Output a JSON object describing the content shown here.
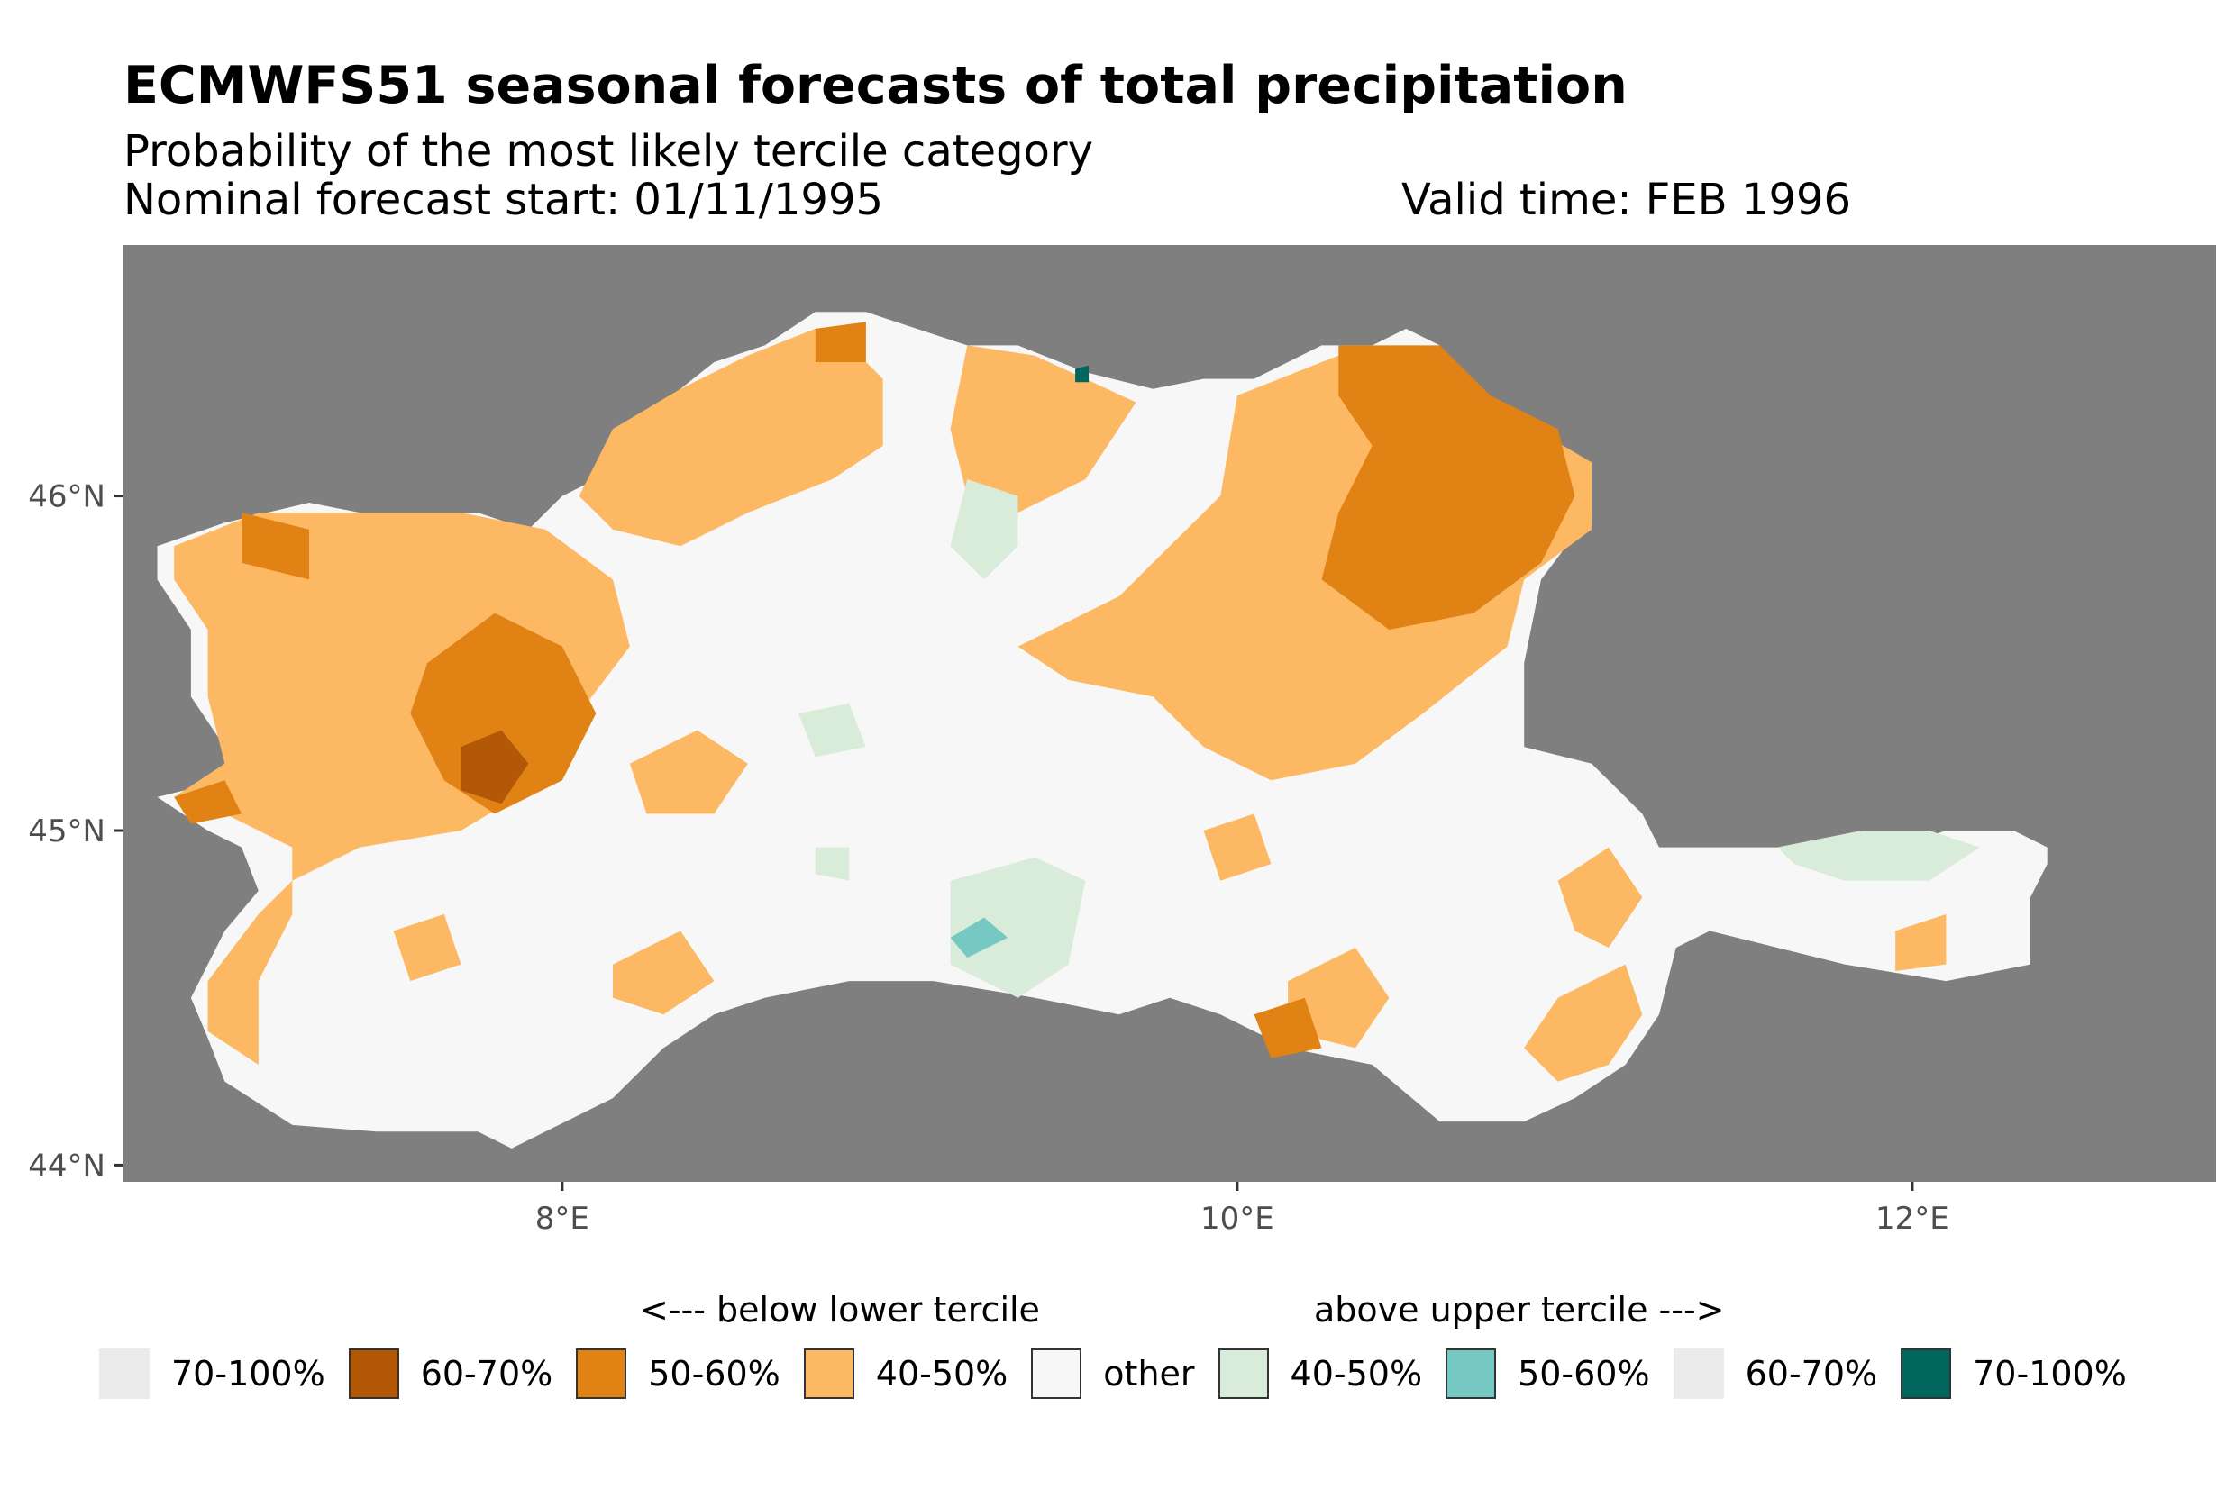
{
  "title": "ECMWFS51 seasonal forecasts of total precipitation",
  "subtitle": "Probability of the most likely tercile category",
  "forecast_start": "Nominal forecast start: 01/11/1995",
  "valid_time": "Valid time: FEB 1996",
  "colors": {
    "background": "#7f7f7f",
    "below_40_50": "#fdb863",
    "below_50_60": "#e08214",
    "below_60_70": "#b35806",
    "other": "#f7f7f7",
    "above_40_50": "#d9ecd9",
    "above_50_60": "#76c8c2",
    "above_70_100": "#01665e",
    "empty": "#ebebeb"
  },
  "chart_data": {
    "type": "heatmap",
    "title": "ECMWFS51 seasonal forecasts of total precipitation",
    "xlim": [
      6.7,
      12.9
    ],
    "ylim": [
      43.95,
      46.75
    ],
    "x_ticks": [
      {
        "value": 8,
        "label": "8°E"
      },
      {
        "value": 10,
        "label": "10°E"
      },
      {
        "value": 12,
        "label": "12°E"
      }
    ],
    "y_ticks": [
      {
        "value": 44,
        "label": "44°N"
      },
      {
        "value": 45,
        "label": "45°N"
      },
      {
        "value": 46,
        "label": "46°N"
      }
    ],
    "region_outline": [
      [
        6.8,
        45.1
      ],
      [
        7.0,
        45.15
      ],
      [
        7.0,
        45.25
      ],
      [
        6.9,
        45.4
      ],
      [
        6.9,
        45.6
      ],
      [
        6.8,
        45.75
      ],
      [
        6.8,
        45.85
      ],
      [
        7.0,
        45.92
      ],
      [
        7.25,
        45.98
      ],
      [
        7.4,
        45.95
      ],
      [
        7.55,
        45.95
      ],
      [
        7.75,
        45.95
      ],
      [
        7.9,
        45.9
      ],
      [
        8.0,
        46.0
      ],
      [
        8.1,
        46.05
      ],
      [
        8.15,
        46.2
      ],
      [
        8.3,
        46.28
      ],
      [
        8.45,
        46.4
      ],
      [
        8.6,
        46.45
      ],
      [
        8.75,
        46.55
      ],
      [
        8.9,
        46.55
      ],
      [
        9.05,
        46.5
      ],
      [
        9.2,
        46.45
      ],
      [
        9.35,
        46.45
      ],
      [
        9.55,
        46.37
      ],
      [
        9.75,
        46.32
      ],
      [
        9.9,
        46.35
      ],
      [
        10.05,
        46.35
      ],
      [
        10.25,
        46.45
      ],
      [
        10.4,
        46.45
      ],
      [
        10.5,
        46.5
      ],
      [
        10.6,
        46.45
      ],
      [
        10.7,
        46.3
      ],
      [
        10.85,
        46.2
      ],
      [
        10.95,
        46.15
      ],
      [
        11.05,
        46.1
      ],
      [
        11.05,
        45.95
      ],
      [
        10.9,
        45.75
      ],
      [
        10.85,
        45.5
      ],
      [
        10.85,
        45.25
      ],
      [
        11.05,
        45.2
      ],
      [
        11.2,
        45.05
      ],
      [
        11.25,
        44.95
      ],
      [
        11.45,
        44.95
      ],
      [
        11.6,
        44.95
      ],
      [
        11.75,
        44.95
      ],
      [
        11.95,
        44.95
      ],
      [
        12.1,
        45.0
      ],
      [
        12.3,
        45.0
      ],
      [
        12.4,
        44.95
      ],
      [
        12.4,
        44.9
      ],
      [
        12.35,
        44.8
      ],
      [
        12.35,
        44.6
      ],
      [
        12.1,
        44.55
      ],
      [
        11.8,
        44.6
      ],
      [
        11.4,
        44.7
      ],
      [
        11.3,
        44.65
      ],
      [
        11.25,
        44.45
      ],
      [
        11.15,
        44.3
      ],
      [
        11.0,
        44.2
      ],
      [
        10.85,
        44.13
      ],
      [
        10.6,
        44.13
      ],
      [
        10.4,
        44.3
      ],
      [
        10.15,
        44.35
      ],
      [
        9.95,
        44.45
      ],
      [
        9.8,
        44.5
      ],
      [
        9.65,
        44.45
      ],
      [
        9.4,
        44.5
      ],
      [
        9.1,
        44.55
      ],
      [
        8.85,
        44.55
      ],
      [
        8.6,
        44.5
      ],
      [
        8.45,
        44.45
      ],
      [
        8.3,
        44.35
      ],
      [
        8.15,
        44.2
      ],
      [
        7.95,
        44.1
      ],
      [
        7.85,
        44.05
      ],
      [
        7.75,
        44.1
      ],
      [
        7.45,
        44.1
      ],
      [
        7.2,
        44.12
      ],
      [
        7.0,
        44.25
      ],
      [
        6.95,
        44.38
      ],
      [
        6.9,
        44.5
      ],
      [
        6.95,
        44.6
      ],
      [
        7.0,
        44.7
      ],
      [
        7.1,
        44.82
      ],
      [
        7.05,
        44.95
      ],
      [
        6.95,
        45.0
      ],
      [
        6.8,
        45.1
      ]
    ],
    "series": [
      {
        "name": "below 40-50%",
        "color": "#fdb863",
        "regions": [
          [
            [
              6.85,
              45.85
            ],
            [
              7.1,
              45.95
            ],
            [
              7.4,
              45.95
            ],
            [
              7.7,
              45.95
            ],
            [
              7.95,
              45.9
            ],
            [
              8.15,
              45.75
            ],
            [
              8.2,
              45.55
            ],
            [
              8.05,
              45.35
            ],
            [
              7.95,
              45.15
            ],
            [
              7.7,
              45.0
            ],
            [
              7.4,
              44.95
            ],
            [
              7.2,
              44.85
            ],
            [
              7.1,
              44.75
            ],
            [
              6.95,
              44.55
            ],
            [
              6.95,
              44.4
            ],
            [
              7.1,
              44.3
            ],
            [
              7.1,
              44.55
            ],
            [
              7.2,
              44.75
            ],
            [
              7.2,
              44.95
            ],
            [
              7.0,
              45.05
            ],
            [
              6.85,
              45.1
            ],
            [
              7.0,
              45.2
            ],
            [
              6.95,
              45.4
            ],
            [
              6.95,
              45.6
            ],
            [
              6.85,
              45.75
            ]
          ],
          [
            [
              8.05,
              46.0
            ],
            [
              8.15,
              46.2
            ],
            [
              8.35,
              46.32
            ],
            [
              8.55,
              46.42
            ],
            [
              8.75,
              46.5
            ],
            [
              8.85,
              46.45
            ],
            [
              8.95,
              46.35
            ],
            [
              8.95,
              46.15
            ],
            [
              8.8,
              46.05
            ],
            [
              8.55,
              45.95
            ],
            [
              8.35,
              45.85
            ],
            [
              8.15,
              45.9
            ]
          ],
          [
            [
              9.2,
              46.45
            ],
            [
              9.4,
              46.42
            ],
            [
              9.55,
              46.35
            ],
            [
              9.7,
              46.28
            ],
            [
              9.55,
              46.05
            ],
            [
              9.35,
              45.95
            ],
            [
              9.2,
              46.0
            ],
            [
              9.15,
              46.2
            ]
          ],
          [
            [
              10.0,
              46.3
            ],
            [
              10.3,
              46.42
            ],
            [
              10.55,
              46.45
            ],
            [
              10.85,
              46.22
            ],
            [
              11.05,
              46.1
            ],
            [
              11.05,
              45.9
            ],
            [
              10.85,
              45.75
            ],
            [
              10.8,
              45.55
            ],
            [
              10.55,
              45.35
            ],
            [
              10.35,
              45.2
            ],
            [
              10.1,
              45.15
            ],
            [
              9.9,
              45.25
            ],
            [
              9.75,
              45.4
            ],
            [
              9.5,
              45.45
            ],
            [
              9.35,
              45.55
            ],
            [
              9.65,
              45.7
            ],
            [
              9.8,
              45.85
            ],
            [
              9.95,
              46.0
            ]
          ],
          [
            [
              8.2,
              45.2
            ],
            [
              8.4,
              45.3
            ],
            [
              8.55,
              45.2
            ],
            [
              8.45,
              45.05
            ],
            [
              8.25,
              45.05
            ]
          ],
          [
            [
              10.15,
              44.55
            ],
            [
              10.35,
              44.65
            ],
            [
              10.45,
              44.5
            ],
            [
              10.35,
              44.35
            ],
            [
              10.15,
              44.4
            ]
          ],
          [
            [
              10.95,
              44.5
            ],
            [
              11.15,
              44.6
            ],
            [
              11.2,
              44.45
            ],
            [
              11.1,
              44.3
            ],
            [
              10.95,
              44.25
            ],
            [
              10.85,
              44.35
            ]
          ],
          [
            [
              10.95,
              44.85
            ],
            [
              11.1,
              44.95
            ],
            [
              11.2,
              44.8
            ],
            [
              11.1,
              44.65
            ],
            [
              11.0,
              44.7
            ]
          ],
          [
            [
              11.95,
              44.7
            ],
            [
              12.1,
              44.75
            ],
            [
              12.1,
              44.6
            ],
            [
              11.95,
              44.58
            ]
          ],
          [
            [
              8.15,
              44.6
            ],
            [
              8.35,
              44.7
            ],
            [
              8.45,
              44.55
            ],
            [
              8.3,
              44.45
            ],
            [
              8.15,
              44.5
            ]
          ],
          [
            [
              7.5,
              44.7
            ],
            [
              7.65,
              44.75
            ],
            [
              7.7,
              44.6
            ],
            [
              7.55,
              44.55
            ]
          ],
          [
            [
              9.9,
              45.0
            ],
            [
              10.05,
              45.05
            ],
            [
              10.1,
              44.9
            ],
            [
              9.95,
              44.85
            ]
          ]
        ]
      },
      {
        "name": "below 50-60%",
        "color": "#e08214",
        "regions": [
          [
            [
              7.6,
              45.5
            ],
            [
              7.8,
              45.65
            ],
            [
              8.0,
              45.55
            ],
            [
              8.1,
              45.35
            ],
            [
              8.0,
              45.15
            ],
            [
              7.8,
              45.05
            ],
            [
              7.65,
              45.15
            ],
            [
              7.55,
              45.35
            ]
          ],
          [
            [
              7.05,
              45.95
            ],
            [
              7.25,
              45.9
            ],
            [
              7.25,
              45.75
            ],
            [
              7.05,
              45.8
            ]
          ],
          [
            [
              6.85,
              45.1
            ],
            [
              7.0,
              45.15
            ],
            [
              7.05,
              45.05
            ],
            [
              6.9,
              45.02
            ]
          ],
          [
            [
              10.3,
              46.45
            ],
            [
              10.6,
              46.45
            ],
            [
              10.75,
              46.3
            ],
            [
              10.95,
              46.2
            ],
            [
              11.0,
              46.0
            ],
            [
              10.9,
              45.8
            ],
            [
              10.7,
              45.65
            ],
            [
              10.45,
              45.6
            ],
            [
              10.25,
              45.75
            ],
            [
              10.3,
              45.95
            ],
            [
              10.4,
              46.15
            ],
            [
              10.3,
              46.3
            ]
          ],
          [
            [
              8.75,
              46.5
            ],
            [
              8.9,
              46.52
            ],
            [
              8.9,
              46.4
            ],
            [
              8.75,
              46.4
            ]
          ],
          [
            [
              10.05,
              44.45
            ],
            [
              10.2,
              44.5
            ],
            [
              10.25,
              44.35
            ],
            [
              10.1,
              44.32
            ]
          ]
        ]
      },
      {
        "name": "below 60-70%",
        "color": "#b35806",
        "regions": [
          [
            [
              7.7,
              45.25
            ],
            [
              7.82,
              45.3
            ],
            [
              7.9,
              45.2
            ],
            [
              7.82,
              45.08
            ],
            [
              7.7,
              45.12
            ]
          ]
        ]
      },
      {
        "name": "above 40-50%",
        "color": "#d9ecd9",
        "regions": [
          [
            [
              9.2,
              46.05
            ],
            [
              9.35,
              46.0
            ],
            [
              9.35,
              45.85
            ],
            [
              9.25,
              45.75
            ],
            [
              9.15,
              45.85
            ]
          ],
          [
            [
              9.15,
              44.85
            ],
            [
              9.4,
              44.92
            ],
            [
              9.55,
              44.85
            ],
            [
              9.5,
              44.6
            ],
            [
              9.35,
              44.5
            ],
            [
              9.15,
              44.6
            ]
          ],
          [
            [
              11.6,
              44.95
            ],
            [
              11.85,
              45.0
            ],
            [
              12.05,
              45.0
            ],
            [
              12.2,
              44.95
            ],
            [
              12.05,
              44.85
            ],
            [
              11.8,
              44.85
            ],
            [
              11.65,
              44.9
            ]
          ],
          [
            [
              8.7,
              45.35
            ],
            [
              8.85,
              45.38
            ],
            [
              8.9,
              45.25
            ],
            [
              8.75,
              45.22
            ]
          ],
          [
            [
              8.75,
              44.95
            ],
            [
              8.85,
              44.95
            ],
            [
              8.85,
              44.85
            ],
            [
              8.75,
              44.87
            ]
          ]
        ]
      },
      {
        "name": "above 50-60%",
        "color": "#76c8c2",
        "regions": [
          [
            [
              9.15,
              44.68
            ],
            [
              9.25,
              44.74
            ],
            [
              9.32,
              44.68
            ],
            [
              9.2,
              44.62
            ]
          ]
        ]
      },
      {
        "name": "above 70-100%",
        "color": "#01665e",
        "regions": [
          [
            [
              9.52,
              46.38
            ],
            [
              9.56,
              46.39
            ],
            [
              9.56,
              46.34
            ],
            [
              9.52,
              46.34
            ]
          ]
        ]
      }
    ]
  },
  "legend": {
    "below_heading": "<--- below lower tercile",
    "above_heading": "above upper tercile --->",
    "items": [
      {
        "label": "70-100%",
        "color": "#ebebeb",
        "border": false
      },
      {
        "label": "60-70%",
        "color": "#b35806",
        "border": true
      },
      {
        "label": "50-60%",
        "color": "#e08214",
        "border": true
      },
      {
        "label": "40-50%",
        "color": "#fdb863",
        "border": true
      },
      {
        "label": "other",
        "color": "#f7f7f7",
        "border": true
      },
      {
        "label": "40-50%",
        "color": "#d9ecd9",
        "border": true
      },
      {
        "label": "50-60%",
        "color": "#76c8c2",
        "border": true
      },
      {
        "label": "60-70%",
        "color": "#ebebeb",
        "border": false
      },
      {
        "label": "70-100%",
        "color": "#01665e",
        "border": true
      }
    ]
  }
}
